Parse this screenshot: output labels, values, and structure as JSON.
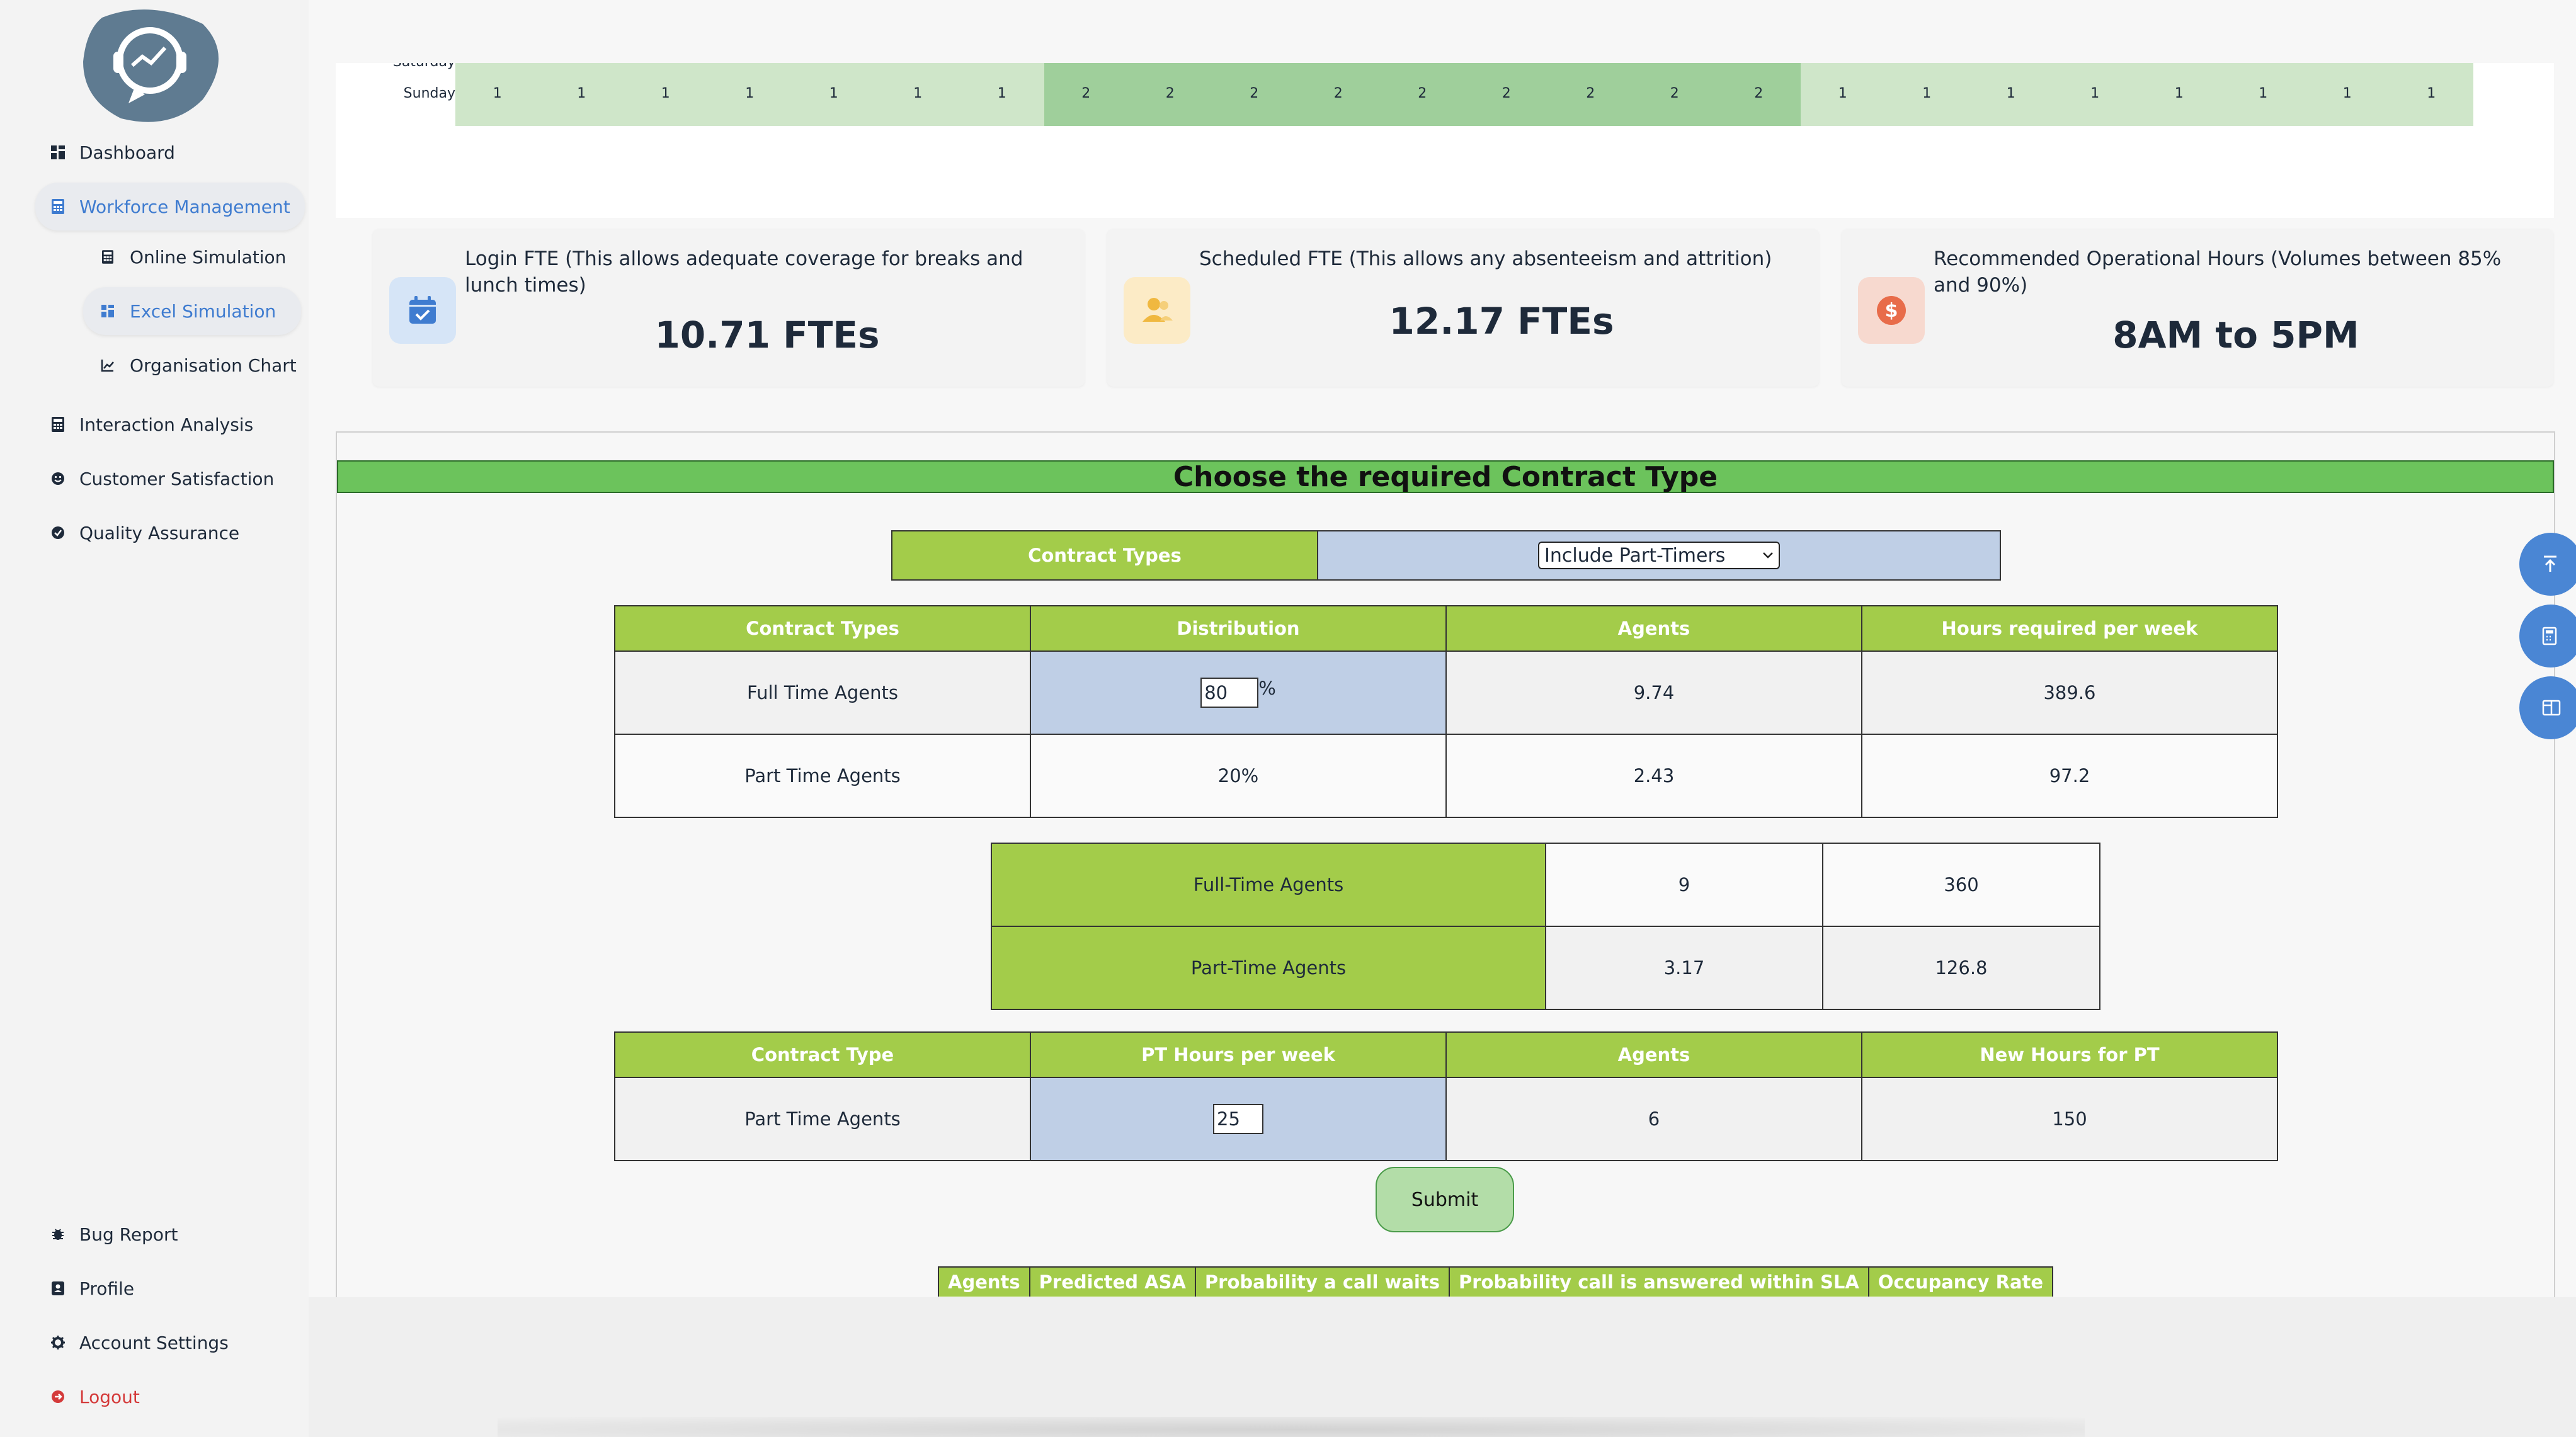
{
  "sidebar": {
    "items": [
      {
        "label": "Dashboard",
        "icon": "dashboard-icon"
      },
      {
        "label": "Workforce Management",
        "icon": "calculator-icon"
      },
      {
        "label": "Interaction Analysis",
        "icon": "calculator-icon"
      },
      {
        "label": "Customer Satisfaction",
        "icon": "smile-icon"
      },
      {
        "label": "Quality Assurance",
        "icon": "check-circle-icon"
      }
    ],
    "subitems": [
      {
        "label": "Online Simulation",
        "icon": "calculator-icon"
      },
      {
        "label": "Excel Simulation",
        "icon": "grid-icon"
      },
      {
        "label": "Organisation Chart",
        "icon": "chart-icon"
      }
    ],
    "bottom": [
      {
        "label": "Bug Report",
        "icon": "bug-icon"
      },
      {
        "label": "Profile",
        "icon": "profile-icon"
      },
      {
        "label": "Account Settings",
        "icon": "gear-icon"
      },
      {
        "label": "Logout",
        "icon": "logout-icon"
      }
    ]
  },
  "schedule": {
    "partial_day": "Saturday",
    "day": "Sunday",
    "values": [
      "1",
      "1",
      "1",
      "1",
      "1",
      "1",
      "1",
      "2",
      "2",
      "2",
      "2",
      "2",
      "2",
      "2",
      "2",
      "2",
      "1",
      "1",
      "1",
      "1",
      "1",
      "1",
      "1",
      "1"
    ]
  },
  "stats": [
    {
      "title": "Login FTE (This allows adequate coverage for breaks and lunch times)",
      "value": "10.71 FTEs",
      "icon": "calendar-check-icon",
      "icon_bg": "#d6e5f7",
      "icon_color": "#3f7cd0"
    },
    {
      "title": "Scheduled FTE (This allows any absenteeism and attrition)",
      "value": "12.17 FTEs",
      "icon": "users-icon",
      "icon_bg": "#fcebc6",
      "icon_color": "#f0b840"
    },
    {
      "title": "Recommended Operational Hours (Volumes between 85% and 90%)",
      "value": "8AM to 5PM",
      "icon": "dollar-icon",
      "icon_bg": "#f7d9cf",
      "icon_color": "#e86c4a"
    }
  ],
  "contract": {
    "heading": "Choose the required Contract Type",
    "selector_label": "Contract Types",
    "selected": "Include Part-Timers",
    "dist_headers": [
      "Contract Types",
      "Distribution",
      "Agents",
      "Hours required per week"
    ],
    "full_time": {
      "label": "Full Time Agents",
      "distribution": "80",
      "pct": "%",
      "agents": "9.74",
      "hours": "389.6"
    },
    "part_time": {
      "label": "Part Time Agents",
      "distribution": "20%",
      "agents": "2.43",
      "hours": "97.2"
    },
    "summary": [
      {
        "label": "Full-Time Agents",
        "agents": "9",
        "hours": "360"
      },
      {
        "label": "Part-Time Agents",
        "agents": "3.17",
        "hours": "126.8"
      }
    ],
    "pt_headers": [
      "Contract Type",
      "PT Hours per week",
      "Agents",
      "New Hours for PT"
    ],
    "pt_row": {
      "label": "Part Time Agents",
      "hours": "25",
      "agents": "6",
      "new_hours": "150"
    },
    "submit": "Submit",
    "results_headers": [
      "Agents",
      "Predicted ASA",
      "Probability a call waits",
      "Probability call is answered within SLA",
      "Occupancy Rate"
    ]
  },
  "colors": {
    "accent": "#3f7cd0",
    "header_green": "#6cc35c",
    "table_green": "#a3cc4a",
    "input_blue": "#bfcfe6",
    "logout_red": "#d43a3a"
  }
}
